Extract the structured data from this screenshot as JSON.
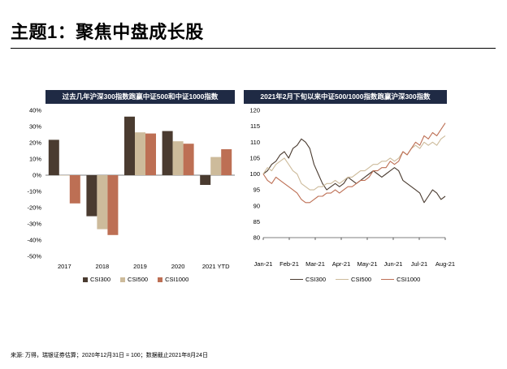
{
  "page": {
    "title": "主题1：聚焦中盘成长股",
    "source": "来源: 万得，瑞银证券估算；2020年12月31日 = 100；数据截止2021年8月24日"
  },
  "colors": {
    "csi300": "#4a3b30",
    "csi500": "#cdbb9b",
    "csi1000": "#bd6f54",
    "header_bg": "#1f2a44"
  },
  "chart_data": [
    {
      "type": "bar",
      "title": "过去几年沪深300指数跑赢中证500和中证1000指数",
      "categories": [
        "2017",
        "2018",
        "2019",
        "2020",
        "2021 YTD"
      ],
      "y_ticks": [
        "40%",
        "30%",
        "20%",
        "10%",
        "0%",
        "-10%",
        "-20%",
        "-30%",
        "-40%",
        "-50%"
      ],
      "ylim": [
        -50,
        40
      ],
      "series": [
        {
          "name": "CSI300",
          "values": [
            21.8,
            -25.3,
            36.1,
            27.2,
            -6.0
          ]
        },
        {
          "name": "CSI500",
          "values": [
            -0.2,
            -33.3,
            26.4,
            20.9,
            11.2
          ]
        },
        {
          "name": "CSI1000",
          "values": [
            -17.4,
            -36.9,
            25.7,
            19.4,
            16.0
          ]
        }
      ],
      "legend": [
        "CSI300",
        "CSI500",
        "CSI1000"
      ],
      "legend_position": "bottom"
    },
    {
      "type": "line",
      "title": "2021年2月下旬以来中证500/1000指数跑赢沪深300指数",
      "x_labels": [
        "Jan-21",
        "Feb-21",
        "Mar-21",
        "Apr-21",
        "May-21",
        "Jun-21",
        "Jul-21",
        "Aug-21"
      ],
      "y_ticks": [
        "120",
        "115",
        "110",
        "105",
        "100",
        "95",
        "90",
        "85",
        "80"
      ],
      "ylim": [
        80,
        120
      ],
      "series": [
        {
          "name": "CSI300",
          "values": [
            100,
            101,
            103,
            104,
            106,
            107,
            105,
            108,
            109,
            111,
            110,
            108,
            103,
            100,
            97,
            95,
            96,
            97,
            96,
            97,
            99,
            98,
            97,
            98,
            99,
            100,
            101,
            100,
            99,
            100,
            101,
            102,
            101,
            98,
            97,
            96,
            95,
            94,
            91,
            93,
            95,
            94,
            92,
            93
          ]
        },
        {
          "name": "CSI500",
          "values": [
            100,
            102,
            101,
            103,
            104,
            105,
            103,
            101,
            100,
            97,
            96,
            95,
            95,
            96,
            96,
            97,
            97,
            98,
            97,
            98,
            99,
            99,
            100,
            101,
            101,
            102,
            103,
            103,
            104,
            104,
            105,
            104,
            105,
            107,
            106,
            108,
            109,
            108,
            110,
            109,
            110,
            109,
            111,
            112
          ]
        },
        {
          "name": "CSI1000",
          "values": [
            100,
            98,
            97,
            99,
            98,
            97,
            96,
            95,
            94,
            92,
            91,
            91,
            92,
            93,
            93,
            94,
            94,
            95,
            94,
            95,
            96,
            96,
            97,
            98,
            98,
            99,
            101,
            101,
            102,
            102,
            104,
            103,
            104,
            107,
            106,
            108,
            110,
            109,
            112,
            111,
            113,
            112,
            114,
            116
          ]
        }
      ],
      "legend": [
        "CSI300",
        "CSI500",
        "CSI1000"
      ],
      "legend_position": "bottom"
    }
  ]
}
